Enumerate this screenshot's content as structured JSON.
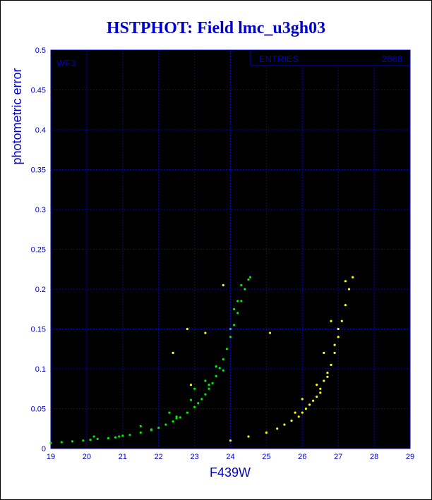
{
  "chart_data": {
    "type": "scatter",
    "title": "HSTPHOT: Field lmc_u3gh03",
    "xlabel": "F439W",
    "ylabel": "photometric error",
    "xlim": [
      19,
      29
    ],
    "ylim": [
      0,
      0.5
    ],
    "xticks": [
      "19",
      "20",
      "21",
      "22",
      "23",
      "24",
      "25",
      "26",
      "27",
      "28",
      "29"
    ],
    "yticks": [
      "0",
      "0.05",
      "0.1",
      "0.15",
      "0.2",
      "0.25",
      "0.3",
      "0.35",
      "0.4",
      "0.45",
      "0.5"
    ],
    "grid": true,
    "panel_label": "WF3",
    "stats_box": {
      "label": "ENTRIES",
      "value": "2868"
    },
    "series": [
      {
        "color": "#00ee00",
        "points": [
          [
            19.0,
            0.007
          ],
          [
            19.3,
            0.008
          ],
          [
            19.6,
            0.009
          ],
          [
            19.9,
            0.01
          ],
          [
            20.1,
            0.011
          ],
          [
            20.3,
            0.012
          ],
          [
            20.6,
            0.013
          ],
          [
            20.9,
            0.015
          ],
          [
            21.2,
            0.017
          ],
          [
            21.5,
            0.02
          ],
          [
            21.8,
            0.023
          ],
          [
            22.0,
            0.026
          ],
          [
            22.2,
            0.03
          ],
          [
            22.4,
            0.034
          ],
          [
            22.6,
            0.039
          ],
          [
            22.8,
            0.045
          ],
          [
            23.0,
            0.052
          ],
          [
            23.1,
            0.057
          ],
          [
            23.2,
            0.062
          ],
          [
            23.3,
            0.068
          ],
          [
            23.4,
            0.075
          ],
          [
            23.5,
            0.082
          ],
          [
            23.6,
            0.091
          ],
          [
            23.7,
            0.101
          ],
          [
            23.8,
            0.112
          ],
          [
            23.9,
            0.125
          ],
          [
            24.0,
            0.14
          ],
          [
            24.1,
            0.155
          ],
          [
            24.2,
            0.17
          ],
          [
            24.3,
            0.185
          ],
          [
            24.4,
            0.2
          ],
          [
            24.5,
            0.212
          ],
          [
            24.55,
            0.215
          ],
          [
            22.3,
            0.045
          ],
          [
            21.5,
            0.028
          ],
          [
            23.3,
            0.085
          ],
          [
            24.1,
            0.175
          ],
          [
            23.0,
            0.075
          ],
          [
            20.2,
            0.015
          ],
          [
            22.9,
            0.061
          ],
          [
            23.6,
            0.103
          ],
          [
            24.0,
            0.15
          ],
          [
            21.8,
            0.024
          ],
          [
            24.3,
            0.205
          ],
          [
            22.5,
            0.04
          ],
          [
            22.5,
            0.038
          ],
          [
            23.8,
            0.098
          ],
          [
            20.8,
            0.014
          ],
          [
            21.0,
            0.016
          ],
          [
            23.4,
            0.08
          ],
          [
            24.2,
            0.185
          ]
        ]
      },
      {
        "color": "#ffff00",
        "points": [
          [
            24.0,
            0.01
          ],
          [
            24.5,
            0.015
          ],
          [
            25.0,
            0.02
          ],
          [
            25.3,
            0.025
          ],
          [
            25.5,
            0.03
          ],
          [
            25.7,
            0.035
          ],
          [
            25.9,
            0.04
          ],
          [
            26.0,
            0.045
          ],
          [
            26.2,
            0.055
          ],
          [
            26.4,
            0.065
          ],
          [
            26.5,
            0.075
          ],
          [
            26.6,
            0.085
          ],
          [
            26.7,
            0.095
          ],
          [
            26.8,
            0.105
          ],
          [
            26.9,
            0.12
          ],
          [
            27.0,
            0.14
          ],
          [
            27.1,
            0.16
          ],
          [
            27.2,
            0.18
          ],
          [
            27.3,
            0.2
          ],
          [
            27.4,
            0.215
          ],
          [
            26.1,
            0.05
          ],
          [
            26.3,
            0.06
          ],
          [
            26.5,
            0.07
          ],
          [
            26.7,
            0.09
          ],
          [
            26.9,
            0.13
          ],
          [
            27.0,
            0.15
          ],
          [
            26.6,
            0.12
          ],
          [
            26.8,
            0.16
          ],
          [
            27.2,
            0.21
          ],
          [
            25.8,
            0.045
          ],
          [
            26.0,
            0.062
          ],
          [
            26.4,
            0.08
          ],
          [
            22.8,
            0.15
          ],
          [
            23.3,
            0.145
          ],
          [
            22.4,
            0.12
          ],
          [
            23.8,
            0.205
          ],
          [
            25.1,
            0.145
          ],
          [
            22.9,
            0.08
          ]
        ]
      }
    ]
  }
}
